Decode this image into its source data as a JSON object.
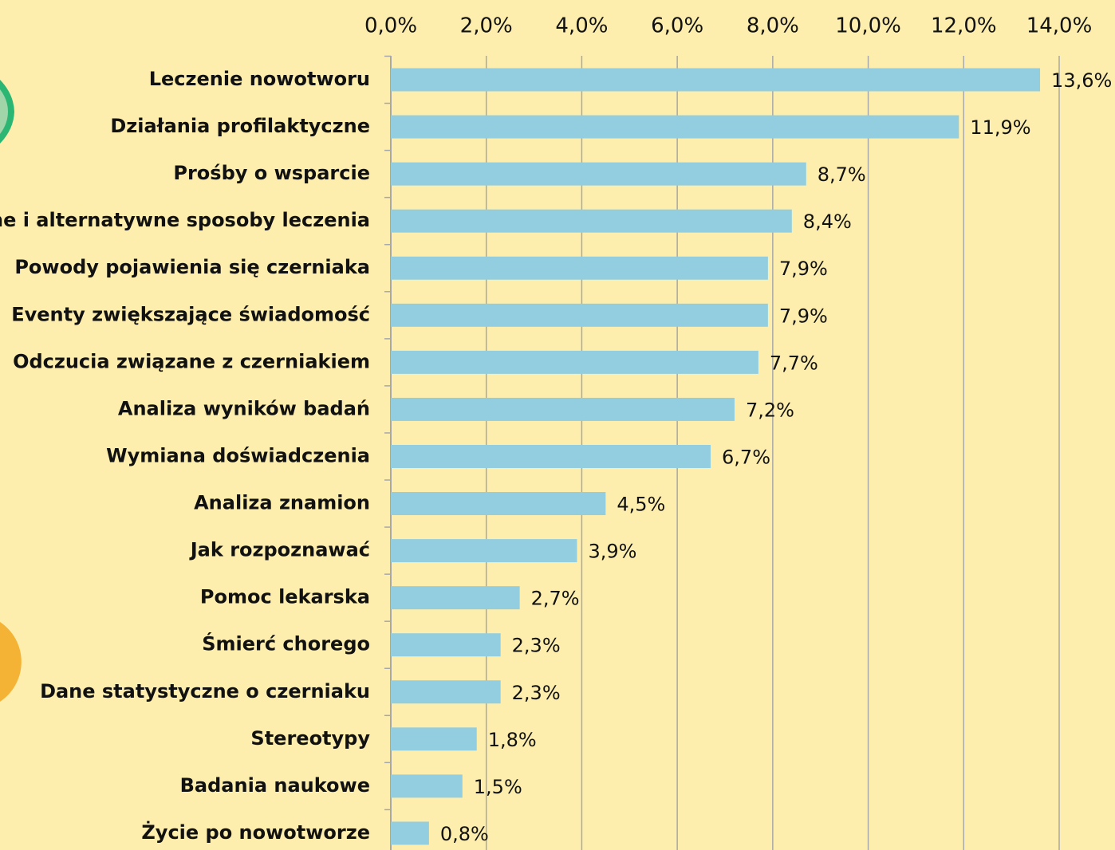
{
  "chart_data": {
    "type": "barh",
    "categories": [
      "Leczenie nowotworu",
      "Działania profilaktyczne",
      "Prośby o wsparcie",
      "ne i alternatywne sposoby leczenia",
      "Powody pojawienia się czerniaka",
      "Eventy zwiększające świadomość",
      "Odczucia związane z czerniakiem",
      "Analiza wyników badań",
      "Wymiana doświadczenia",
      "Analiza znamion",
      "Jak rozpoznawać",
      "Pomoc lekarska",
      "Śmierć chorego",
      "Dane statystyczne o czerniaku",
      "Stereotypy",
      "Badania naukowe",
      "Życie po nowotworze"
    ],
    "values": [
      13.6,
      11.9,
      8.7,
      8.4,
      7.9,
      7.9,
      7.7,
      7.2,
      6.7,
      4.5,
      3.9,
      2.7,
      2.3,
      2.3,
      1.8,
      1.5,
      0.8
    ],
    "value_labels": [
      "13,6%",
      "11,9%",
      "8,7%",
      "8,4%",
      "7,9%",
      "7,9%",
      "7,7%",
      "7,2%",
      "6,7%",
      "4,5%",
      "3,9%",
      "2,7%",
      "2,3%",
      "2,3%",
      "1,8%",
      "1,5%",
      "0,8%"
    ],
    "color": "#93cee0",
    "xlim": [
      0,
      14
    ],
    "xticks": [
      {
        "value": 0,
        "label": "0,0%"
      },
      {
        "value": 2,
        "label": "2,0%"
      },
      {
        "value": 4,
        "label": "4,0%"
      },
      {
        "value": 6,
        "label": "6,0%"
      },
      {
        "value": 8,
        "label": "8,0%"
      },
      {
        "value": 10,
        "label": "10,0%"
      },
      {
        "value": 12,
        "label": "12,0%"
      },
      {
        "value": 14,
        "label": "14,0%"
      }
    ],
    "grid": true
  }
}
